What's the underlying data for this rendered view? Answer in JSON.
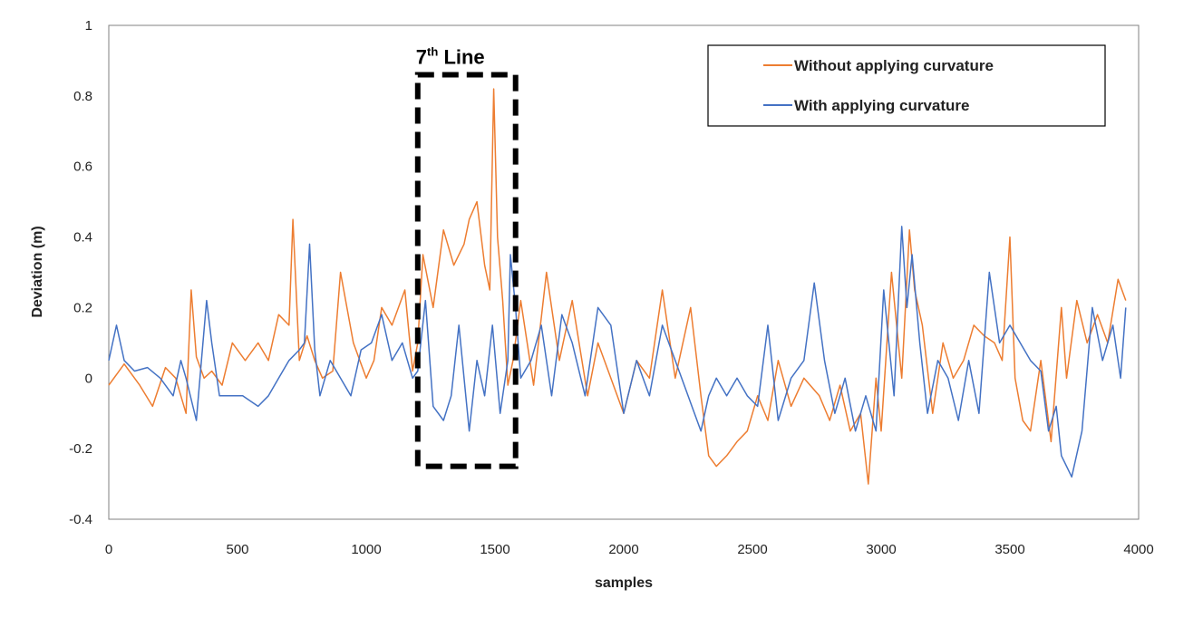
{
  "chart_data": {
    "type": "line",
    "title": "",
    "xlabel": "samples",
    "ylabel": "Deviation (m)",
    "xlim": [
      0,
      4000
    ],
    "ylim": [
      -0.4,
      1
    ],
    "xticks": [
      0,
      500,
      1000,
      1500,
      2000,
      2500,
      3000,
      3500,
      4000
    ],
    "yticks": [
      -0.4,
      -0.2,
      0,
      0.2,
      0.4,
      0.6,
      0.8,
      1
    ],
    "ytick_labels": [
      "-0.4",
      "-0.2",
      "0",
      "0.2",
      "0.4",
      "0.6",
      "0.8",
      "1"
    ],
    "grid": false,
    "legend_position": "top-right",
    "annotation": {
      "label_main": "7",
      "label_sup": "th",
      "label_rest": " Line",
      "x_range": [
        1200,
        1580
      ],
      "y_range": [
        -0.25,
        0.86
      ]
    },
    "series": [
      {
        "name": "Without applying curvature",
        "color": "#ED7D31",
        "x": [
          0,
          60,
          120,
          170,
          220,
          260,
          300,
          320,
          340,
          370,
          400,
          440,
          480,
          530,
          580,
          620,
          660,
          700,
          715,
          740,
          770,
          800,
          830,
          870,
          900,
          950,
          1000,
          1030,
          1060,
          1100,
          1150,
          1180,
          1200,
          1220,
          1260,
          1300,
          1340,
          1380,
          1400,
          1430,
          1460,
          1480,
          1495,
          1510,
          1530,
          1550,
          1570,
          1600,
          1650,
          1700,
          1750,
          1800,
          1860,
          1900,
          1950,
          2000,
          2050,
          2100,
          2150,
          2200,
          2260,
          2300,
          2330,
          2360,
          2400,
          2440,
          2480,
          2520,
          2560,
          2600,
          2650,
          2700,
          2760,
          2800,
          2840,
          2880,
          2920,
          2950,
          2980,
          3000,
          3040,
          3080,
          3110,
          3130,
          3160,
          3200,
          3240,
          3280,
          3320,
          3360,
          3400,
          3440,
          3470,
          3500,
          3520,
          3550,
          3580,
          3620,
          3660,
          3700,
          3720,
          3760,
          3800,
          3840,
          3880,
          3920,
          3950
        ],
        "values": [
          -0.02,
          0.04,
          -0.02,
          -0.08,
          0.03,
          0.0,
          -0.1,
          0.25,
          0.06,
          0.0,
          0.02,
          -0.02,
          0.1,
          0.05,
          0.1,
          0.05,
          0.18,
          0.15,
          0.45,
          0.05,
          0.12,
          0.05,
          0.0,
          0.02,
          0.3,
          0.1,
          0.0,
          0.05,
          0.2,
          0.15,
          0.25,
          0.02,
          0.1,
          0.35,
          0.2,
          0.42,
          0.32,
          0.38,
          0.45,
          0.5,
          0.32,
          0.25,
          0.82,
          0.4,
          0.22,
          -0.02,
          0.05,
          0.22,
          -0.02,
          0.3,
          0.05,
          0.22,
          -0.05,
          0.1,
          0.0,
          -0.1,
          0.05,
          0.0,
          0.25,
          0.0,
          0.2,
          -0.05,
          -0.22,
          -0.25,
          -0.22,
          -0.18,
          -0.15,
          -0.05,
          -0.12,
          0.05,
          -0.08,
          0.0,
          -0.05,
          -0.12,
          -0.02,
          -0.15,
          -0.1,
          -0.3,
          0.0,
          -0.15,
          0.3,
          0.0,
          0.42,
          0.25,
          0.15,
          -0.1,
          0.1,
          0.0,
          0.05,
          0.15,
          0.12,
          0.1,
          0.05,
          0.4,
          0.0,
          -0.12,
          -0.15,
          0.05,
          -0.18,
          0.2,
          0.0,
          0.22,
          0.1,
          0.18,
          0.1,
          0.28,
          0.22
        ]
      },
      {
        "name": "With applying curvature",
        "color": "#4472C4",
        "x": [
          0,
          30,
          60,
          100,
          150,
          200,
          250,
          280,
          300,
          340,
          360,
          380,
          400,
          430,
          470,
          520,
          580,
          620,
          660,
          700,
          740,
          760,
          780,
          800,
          820,
          860,
          900,
          940,
          980,
          1020,
          1060,
          1100,
          1140,
          1180,
          1200,
          1230,
          1260,
          1300,
          1330,
          1360,
          1400,
          1430,
          1460,
          1490,
          1520,
          1550,
          1560,
          1580,
          1600,
          1640,
          1680,
          1720,
          1760,
          1800,
          1850,
          1900,
          1950,
          2000,
          2050,
          2100,
          2150,
          2200,
          2250,
          2300,
          2330,
          2360,
          2400,
          2440,
          2480,
          2520,
          2560,
          2600,
          2650,
          2700,
          2740,
          2780,
          2820,
          2860,
          2900,
          2940,
          2980,
          3010,
          3050,
          3080,
          3100,
          3120,
          3150,
          3180,
          3220,
          3260,
          3300,
          3340,
          3380,
          3420,
          3460,
          3500,
          3540,
          3580,
          3620,
          3650,
          3680,
          3700,
          3740,
          3780,
          3820,
          3860,
          3900,
          3930,
          3950
        ],
        "values": [
          0.05,
          0.15,
          0.05,
          0.02,
          0.03,
          0.0,
          -0.05,
          0.05,
          0.0,
          -0.12,
          0.05,
          0.22,
          0.1,
          -0.05,
          -0.05,
          -0.05,
          -0.08,
          -0.05,
          0.0,
          0.05,
          0.08,
          0.1,
          0.38,
          0.08,
          -0.05,
          0.05,
          0.0,
          -0.05,
          0.08,
          0.1,
          0.18,
          0.05,
          0.1,
          0.0,
          0.02,
          0.22,
          -0.08,
          -0.12,
          -0.05,
          0.15,
          -0.15,
          0.05,
          -0.05,
          0.15,
          -0.1,
          0.05,
          0.35,
          0.2,
          0.0,
          0.05,
          0.15,
          -0.05,
          0.18,
          0.1,
          -0.05,
          0.2,
          0.15,
          -0.1,
          0.05,
          -0.05,
          0.15,
          0.05,
          -0.05,
          -0.15,
          -0.05,
          0.0,
          -0.05,
          0.0,
          -0.05,
          -0.08,
          0.15,
          -0.12,
          0.0,
          0.05,
          0.27,
          0.05,
          -0.1,
          0.0,
          -0.15,
          -0.05,
          -0.15,
          0.25,
          -0.05,
          0.43,
          0.2,
          0.35,
          0.1,
          -0.1,
          0.05,
          0.0,
          -0.12,
          0.05,
          -0.1,
          0.3,
          0.1,
          0.15,
          0.1,
          0.05,
          0.02,
          -0.15,
          -0.08,
          -0.22,
          -0.28,
          -0.15,
          0.2,
          0.05,
          0.15,
          0.0,
          0.2
        ]
      }
    ]
  }
}
